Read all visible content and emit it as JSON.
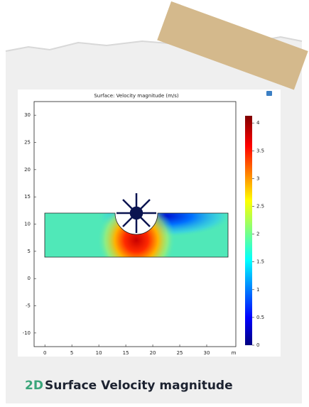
{
  "chart_data": {
    "type": "surface",
    "title": "Surface: Velocity magnitude (m/s)",
    "x_label": "m",
    "xlim": [
      -2,
      35.4
    ],
    "xticks": [
      0,
      5,
      10,
      15,
      20,
      25,
      30
    ],
    "ylim": [
      -12.5,
      32.5
    ],
    "yticks": [
      -10,
      -5,
      0,
      5,
      10,
      15,
      20,
      25,
      30
    ],
    "colorbar_lim": [
      0,
      4.13
    ],
    "colorbar_ticks": [
      0,
      0.5,
      1,
      1.5,
      2,
      2.5,
      3,
      3.5,
      4
    ]
  },
  "caption": {
    "highlight": "2D",
    "text": "Surface Velocity magnitude"
  }
}
